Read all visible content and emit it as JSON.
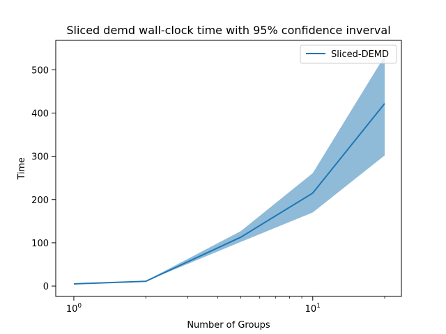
{
  "chart_data": {
    "type": "line",
    "title": "Sliced demd wall-clock time with 95% confidence inverval",
    "xlabel": "Number of Groups",
    "ylabel": "Time",
    "x_scale": "log",
    "xlim": [
      0.84,
      23.5
    ],
    "ylim": [
      -24,
      568
    ],
    "x_ticks": [
      {
        "value": 1,
        "base": "10",
        "exp": "0"
      },
      {
        "value": 10,
        "base": "10",
        "exp": "1"
      }
    ],
    "y_ticks": [
      0,
      100,
      200,
      300,
      400,
      500
    ],
    "grid": false,
    "legend": {
      "position": "top-right",
      "entries": [
        "Sliced-DEMD"
      ]
    },
    "series": [
      {
        "name": "Sliced-DEMD",
        "color": "#1f77b4",
        "band_color": "#1f77b4",
        "x": [
          1,
          2,
          5,
          10,
          20
        ],
        "y": [
          5,
          11,
          113,
          215,
          422
        ],
        "lower": [
          5,
          11,
          102,
          170,
          302
        ],
        "upper": [
          5,
          12,
          127,
          261,
          532
        ]
      }
    ]
  }
}
